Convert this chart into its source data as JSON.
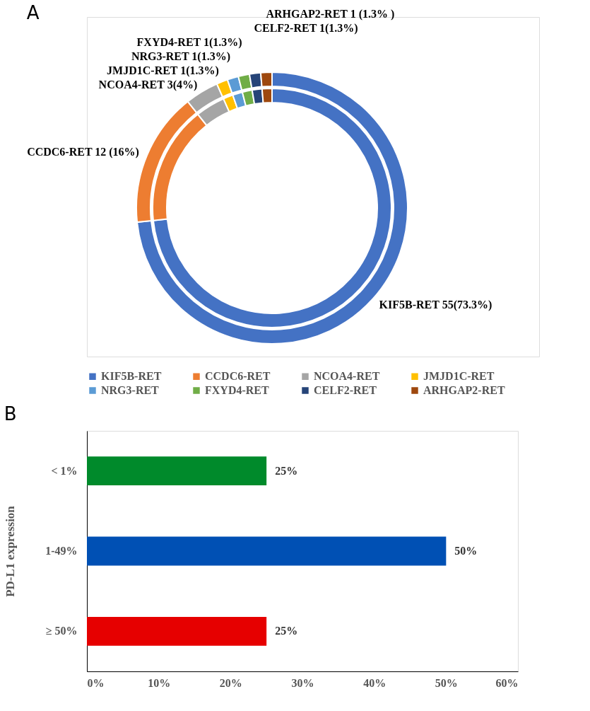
{
  "chart_data": [
    {
      "type": "donut",
      "title": "A",
      "categories": [
        "KIF5B-RET",
        "CCDC6-RET",
        "NCOA4-RET",
        "JMJD1C-RET",
        "NRG3-RET",
        "FXYD4-RET",
        "CELF2-RET",
        "ARHGAP2-RET"
      ],
      "colors": [
        "#4472c4",
        "#ed7d31",
        "#a5a5a5",
        "#ffc000",
        "#5b9bd5",
        "#70ad47",
        "#264478",
        "#9e480e"
      ],
      "series": [
        {
          "values": [
            55,
            12,
            3,
            1,
            1,
            1,
            1,
            1
          ]
        },
        {
          "values": [
            55,
            12,
            3,
            1,
            1,
            1,
            1,
            1
          ]
        }
      ],
      "value_labels": [
        "KIF5B-RET 55(73.3%)",
        "CCDC6-RET 12 (16%)",
        "NCOA4-RET 3(4%)",
        "JMJD1C-RET 1(1.3%)",
        "NRG3-RET 1(1.3%)",
        "FXYD4-RET 1(1.3%)",
        "CELF2-RET 1(1.3%)",
        "ARHGAP2-RET 1 (1.3% )"
      ],
      "legend": "bottom"
    },
    {
      "type": "bar",
      "title": "B",
      "orientation": "horizontal",
      "categories": [
        "< 1%",
        "1-49%",
        "≥ 50%"
      ],
      "values": [
        25,
        50,
        25
      ],
      "colors": [
        "#008a2b",
        "#0050b4",
        "#e60000"
      ],
      "value_labels": [
        "25%",
        "50%",
        "25%"
      ],
      "ylabel": "PD-L1 expression",
      "xlim": [
        0,
        60
      ],
      "xticks": [
        {
          "value": 0,
          "label": "0%"
        },
        {
          "value": 10,
          "label": "10%"
        },
        {
          "value": 20,
          "label": "20%"
        },
        {
          "value": 30,
          "label": "30%"
        },
        {
          "value": 40,
          "label": "40%"
        },
        {
          "value": 50,
          "label": "50%"
        },
        {
          "value": 60,
          "label": "60%"
        }
      ],
      "grid": false,
      "legend": false
    }
  ]
}
